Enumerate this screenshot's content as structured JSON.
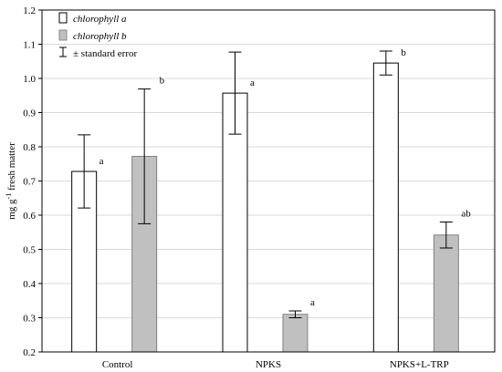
{
  "chart_data": {
    "type": "bar",
    "categories": [
      "Control",
      "NPKS",
      "NPKS+L-TRP"
    ],
    "series": [
      {
        "name": "chlorophyll a",
        "values": [
          0.728,
          0.957,
          1.045
        ],
        "errors": [
          0.107,
          0.12,
          0.035
        ],
        "labels": [
          "a",
          "a",
          "b"
        ],
        "color": "#ffffff"
      },
      {
        "name": "chlorophyll b",
        "values": [
          0.772,
          0.31,
          0.542
        ],
        "errors": [
          0.197,
          0.01,
          0.038
        ],
        "labels": [
          "b",
          "a",
          "ab"
        ],
        "color": "#c0c0c0"
      }
    ],
    "ylabel": "mg g<sup>-1</sup> fresh matter",
    "ylabel_parts": [
      "mg g",
      "-1",
      " fresh matter"
    ],
    "ylim": [
      0.2,
      1.2
    ],
    "yticks": [
      0.2,
      0.3,
      0.4,
      0.5,
      0.6,
      0.7,
      0.8,
      0.9,
      1.0,
      1.1,
      1.2
    ],
    "ytick_labels": [
      "0.2",
      "0.3",
      "0.4",
      "0.5",
      "0.6",
      "0.7",
      "0.8",
      "0.9",
      "1.0",
      "1.1",
      "1.2"
    ],
    "grid": true,
    "legend": {
      "placement": "top-left",
      "error_entry": "± standard error"
    }
  }
}
